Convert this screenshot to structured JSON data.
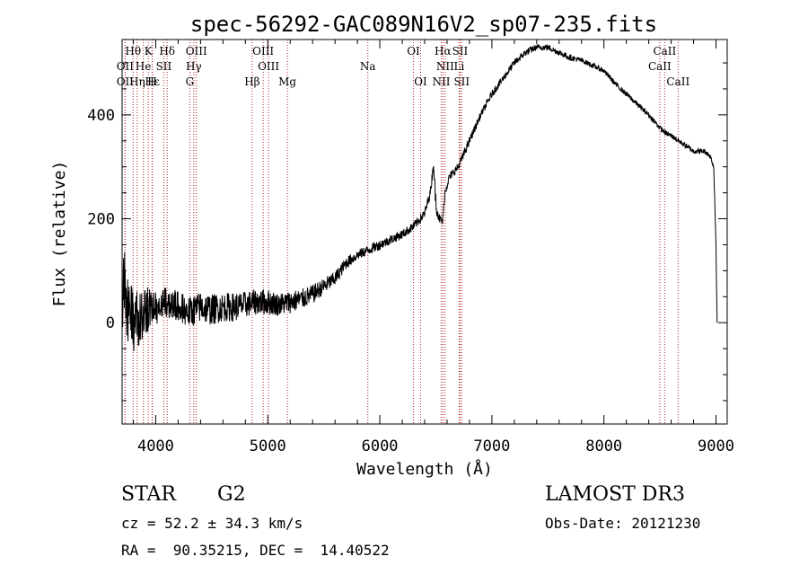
{
  "chart_data": {
    "type": "line",
    "title": "spec-56292-GAC089N16V2_sp07-235.fits",
    "xlabel": "Wavelength (Å)",
    "ylabel": "Flux (relative)",
    "xlim": [
      3700,
      9100
    ],
    "ylim": [
      -195,
      545
    ],
    "xticks": [
      4000,
      5000,
      6000,
      7000,
      8000,
      9000
    ],
    "xtick_labels": [
      "4000",
      "5000",
      "6000",
      "7000",
      "8000",
      "9000"
    ],
    "yticks": [
      0,
      200,
      400
    ],
    "ytick_labels": [
      "0",
      "200",
      "400"
    ],
    "grid": false,
    "spectrum_anchors": {
      "x": [
        3700,
        3720,
        3740,
        3800,
        3850,
        3900,
        4000,
        4100,
        4200,
        4300,
        4400,
        4500,
        4600,
        4700,
        4800,
        4900,
        5000,
        5100,
        5200,
        5300,
        5400,
        5500,
        5600,
        5700,
        5800,
        5900,
        6000,
        6100,
        6200,
        6300,
        6400,
        6450,
        6480,
        6500,
        6530,
        6560,
        6580,
        6620,
        6700,
        6800,
        6900,
        7000,
        7100,
        7200,
        7300,
        7400,
        7500,
        7600,
        7700,
        7800,
        7900,
        8000,
        8100,
        8200,
        8300,
        8400,
        8500,
        8550,
        8600,
        8700,
        8800,
        8900,
        8950,
        8980,
        9000,
        9010
      ],
      "y": [
        0,
        90,
        30,
        0,
        10,
        20,
        30,
        40,
        30,
        20,
        30,
        25,
        30,
        30,
        35,
        40,
        40,
        35,
        40,
        45,
        55,
        70,
        85,
        115,
        130,
        140,
        150,
        160,
        170,
        185,
        210,
        250,
        305,
        230,
        200,
        195,
        250,
        280,
        300,
        350,
        400,
        440,
        470,
        500,
        520,
        530,
        530,
        520,
        510,
        505,
        495,
        485,
        460,
        440,
        420,
        400,
        375,
        365,
        360,
        345,
        330,
        330,
        320,
        300,
        150,
        0
      ],
      "noise": [
        70,
        70,
        70,
        60,
        55,
        50,
        35,
        30,
        30,
        30,
        30,
        30,
        28,
        28,
        25,
        25,
        25,
        22,
        22,
        20,
        18,
        16,
        14,
        12,
        10,
        10,
        10,
        9,
        9,
        9,
        9,
        9,
        9,
        18,
        9,
        9,
        9,
        8,
        8,
        8,
        7,
        7,
        7,
        7,
        7,
        6,
        6,
        6,
        6,
        5,
        5,
        5,
        5,
        5,
        5,
        5,
        5,
        5,
        5,
        5,
        5,
        5,
        5,
        5,
        5,
        5
      ]
    },
    "line_markers": [
      {
        "label": "Hθ",
        "x": 3798,
        "row": 0
      },
      {
        "label": "K",
        "x": 3934,
        "row": 0
      },
      {
        "label": "Hδ",
        "x": 4102,
        "row": 0
      },
      {
        "label": "OIII",
        "x": 4363,
        "row": 0
      },
      {
        "label": "OIII",
        "x": 4959,
        "row": 0
      },
      {
        "label": "OI",
        "x": 6300,
        "row": 0
      },
      {
        "label": "Hα",
        "x": 6563,
        "row": 0
      },
      {
        "label": "SII",
        "x": 6716,
        "row": 0
      },
      {
        "label": "CaII",
        "x": 8542,
        "row": 0
      },
      {
        "label": "OII",
        "x": 3727,
        "row": 1
      },
      {
        "label": "He",
        "x": 3889,
        "row": 1
      },
      {
        "label": "SII",
        "x": 4072,
        "row": 1
      },
      {
        "label": "Hγ",
        "x": 4340,
        "row": 1
      },
      {
        "label": "OIII",
        "x": 5007,
        "row": 1
      },
      {
        "label": "Na",
        "x": 5893,
        "row": 1
      },
      {
        "label": "NII",
        "x": 6583,
        "row": 1
      },
      {
        "label": "Li",
        "x": 6708,
        "row": 1
      },
      {
        "label": "CaII",
        "x": 8498,
        "row": 1
      },
      {
        "label": "OII",
        "x": 3727,
        "row": 2
      },
      {
        "label": "Hε",
        "x": 3970,
        "row": 2
      },
      {
        "label": "Hη",
        "x": 3835,
        "row": 2
      },
      {
        "label": "H",
        "x": 3968,
        "row": 2
      },
      {
        "label": "G",
        "x": 4304,
        "row": 2
      },
      {
        "label": "Hβ",
        "x": 4861,
        "row": 2
      },
      {
        "label": "Mg",
        "x": 5175,
        "row": 2
      },
      {
        "label": "OI",
        "x": 6364,
        "row": 2
      },
      {
        "label": "NII",
        "x": 6548,
        "row": 2
      },
      {
        "label": "SII",
        "x": 6731,
        "row": 2
      },
      {
        "label": "CaII",
        "x": 8662,
        "row": 2
      }
    ]
  },
  "info": {
    "object_type": "STAR",
    "subclass": "G2",
    "survey": "LAMOST DR3",
    "redshift": "cz = 52.2 ± 34.3 km/s",
    "obs_date": "Obs-Date: 20121230",
    "coords": "RA =  90.35215, DEC =  14.40522"
  },
  "colors": {
    "spectrum": "#000000",
    "marker_line": "#b22222",
    "axis": "#000000"
  }
}
